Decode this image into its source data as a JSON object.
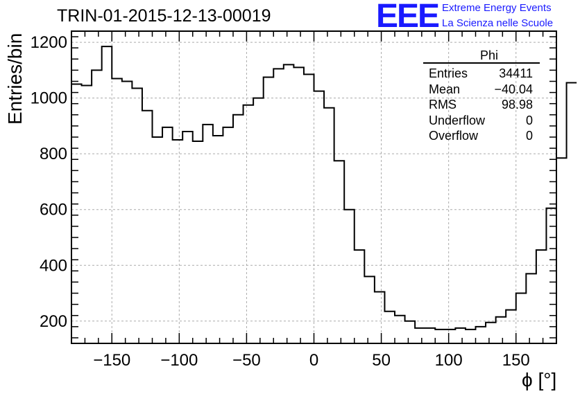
{
  "header": {
    "run_title": "TRIN-01-2015-12-13-00019",
    "logo_text": "EEE",
    "logo_line1": "Extreme Energy Events",
    "logo_line2": "La Scienza nelle Scuole"
  },
  "stats_box": {
    "title": "Phi",
    "rows": [
      {
        "label": "Entries",
        "value": "34411"
      },
      {
        "label": "Mean",
        "value": "−40.04"
      },
      {
        "label": "RMS",
        "value": "98.98"
      },
      {
        "label": "Underflow",
        "value": "0"
      },
      {
        "label": "Overflow",
        "value": "0"
      }
    ]
  },
  "colors": {
    "logo": "#1a1aff",
    "line": "#000000",
    "grid": "#aaaaaa"
  },
  "chart_data": {
    "type": "histogram",
    "title": "TRIN-01-2015-12-13-00019",
    "xlabel": "ϕ [°]",
    "ylabel": "Entries/bin",
    "xlim": [
      -180,
      180
    ],
    "ylim": [
      120,
      1240
    ],
    "xticks": [
      -150,
      -100,
      -50,
      0,
      50,
      100,
      150
    ],
    "xtick_labels": [
      "−150",
      "−100",
      "−50",
      "0",
      "50",
      "100",
      "150"
    ],
    "yticks": [
      200,
      400,
      600,
      800,
      1000,
      1200
    ],
    "ytick_labels": [
      "200",
      "400",
      "600",
      "800",
      "1000",
      "1200"
    ],
    "grid": true,
    "bin_width": 7.5,
    "bin_edges_start": -180,
    "values": [
      1050,
      1045,
      1100,
      1185,
      1070,
      1060,
      1035,
      955,
      860,
      895,
      850,
      880,
      845,
      905,
      865,
      895,
      940,
      975,
      1000,
      1075,
      1105,
      1120,
      1110,
      1085,
      1025,
      965,
      775,
      600,
      455,
      360,
      305,
      235,
      220,
      200,
      175,
      175,
      170,
      170,
      175,
      170,
      180,
      195,
      215,
      240,
      300,
      370,
      455,
      605,
      785,
      1055
    ]
  }
}
